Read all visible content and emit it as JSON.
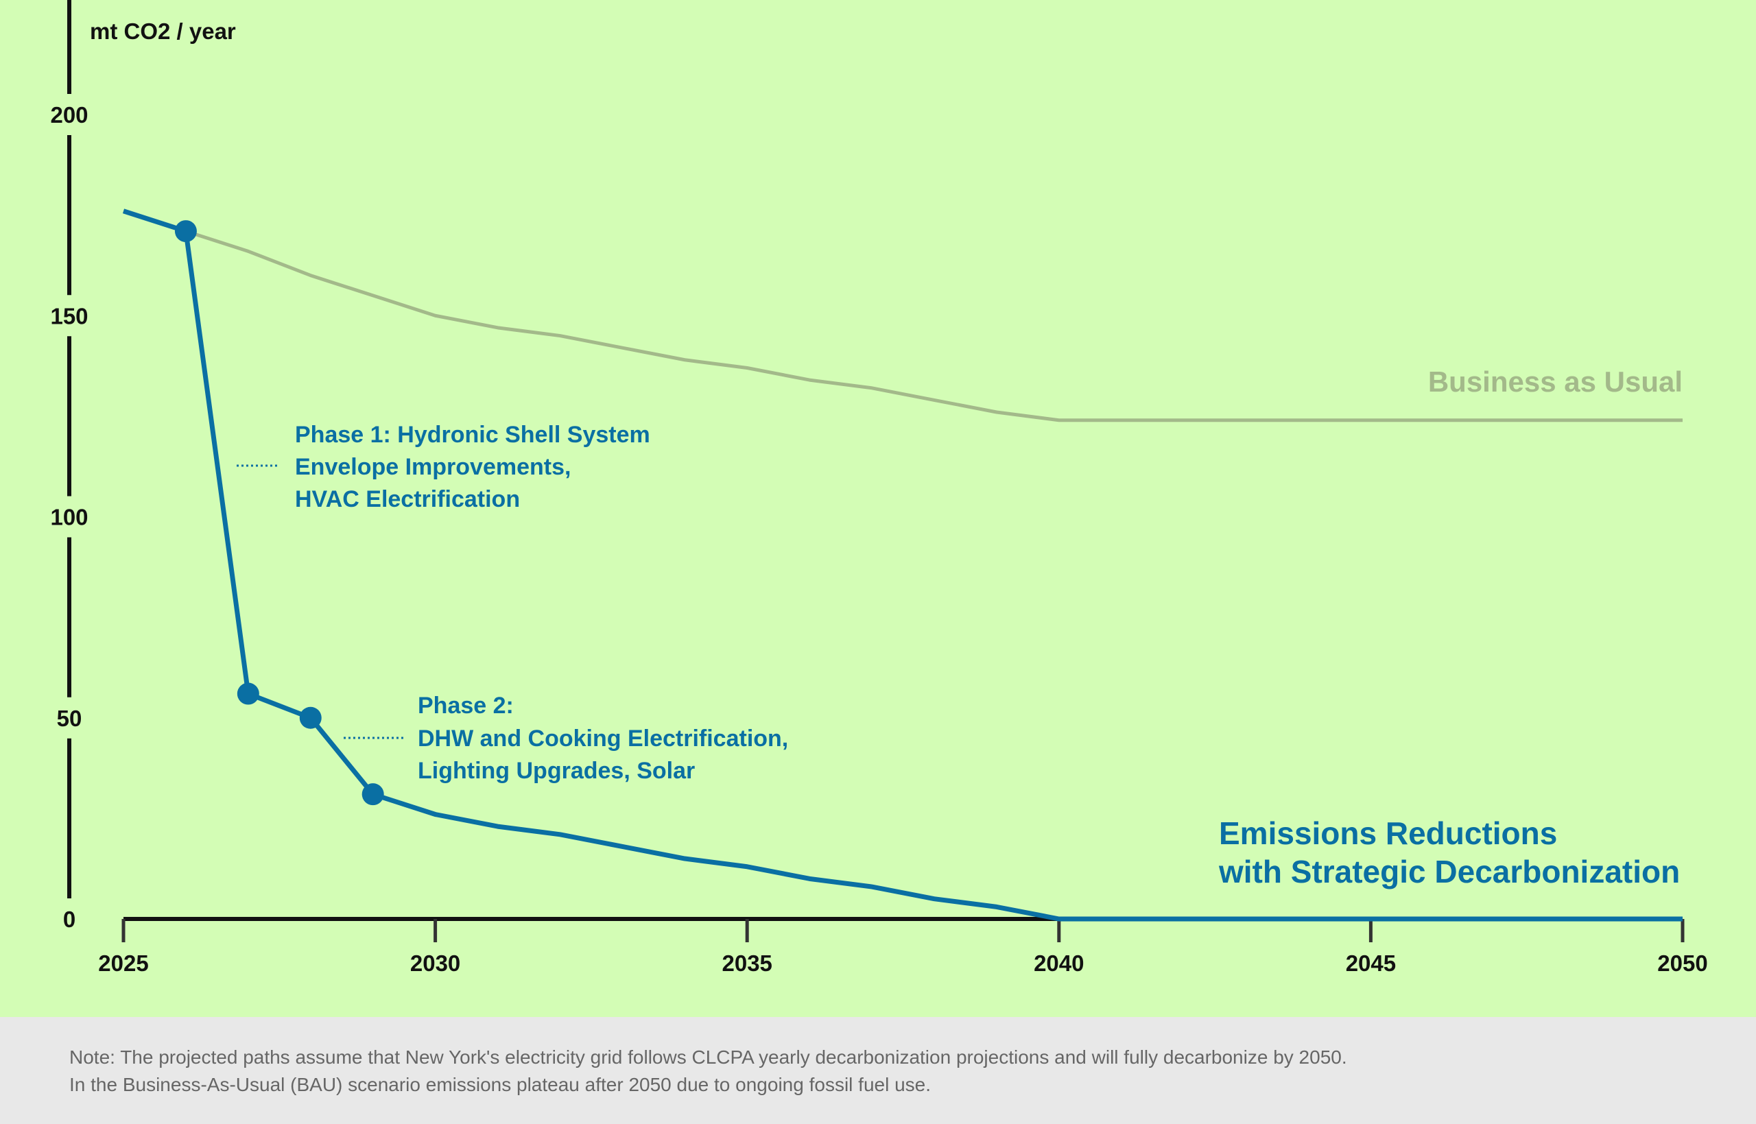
{
  "chart_data": {
    "type": "line",
    "ylabel": "mt CO2 / year",
    "xlim": [
      2025,
      2050
    ],
    "ylim": [
      0,
      200
    ],
    "yticks": [
      "200",
      "150",
      "100",
      "50",
      "0"
    ],
    "xticks": [
      "2025",
      "2030",
      "2035",
      "2040",
      "2045",
      "2050"
    ],
    "series": [
      {
        "name": "Business as Usual",
        "color": "#a3b98a",
        "x": [
          2026,
          2027,
          2028,
          2029,
          2030,
          2031,
          2032,
          2033,
          2034,
          2035,
          2036,
          2037,
          2038,
          2039,
          2040,
          2050
        ],
        "y": [
          171,
          166,
          160,
          155,
          150,
          147,
          145,
          142,
          139,
          137,
          134,
          132,
          129,
          126,
          124,
          124
        ]
      },
      {
        "name": "Emissions Reductions with Strategic Decarbonization",
        "color": "#0a6fa3",
        "x": [
          2025,
          2026,
          2027,
          2028,
          2029,
          2030,
          2031,
          2032,
          2033,
          2034,
          2035,
          2036,
          2037,
          2038,
          2039,
          2040,
          2050
        ],
        "y": [
          176,
          171,
          56,
          50,
          31,
          26,
          23,
          21,
          18,
          15,
          13,
          10,
          8,
          5,
          3,
          0,
          0
        ],
        "markers_at": [
          2026,
          2027,
          2028,
          2029
        ]
      }
    ],
    "labels": {
      "bau": "Business as Usual",
      "decarb_line1": "Emissions Reductions",
      "decarb_line2": "with Strategic Decarbonization"
    },
    "annotations": {
      "phase1": [
        "Phase 1: Hydronic Shell System",
        "Envelope Improvements,",
        "HVAC Electrification"
      ],
      "phase2": [
        "Phase 2:",
        "DHW and Cooking Electrification,",
        "Lighting Upgrades, Solar"
      ]
    }
  },
  "footer": {
    "note_line1": "Note: The projected paths assume that New York's electricity grid follows CLCPA yearly decarbonization projections and will fully decarbonize by 2050.",
    "note_line2": "In the Business-As-Usual (BAU) scenario emissions plateau after 2050 due to ongoing fossil fuel use."
  }
}
